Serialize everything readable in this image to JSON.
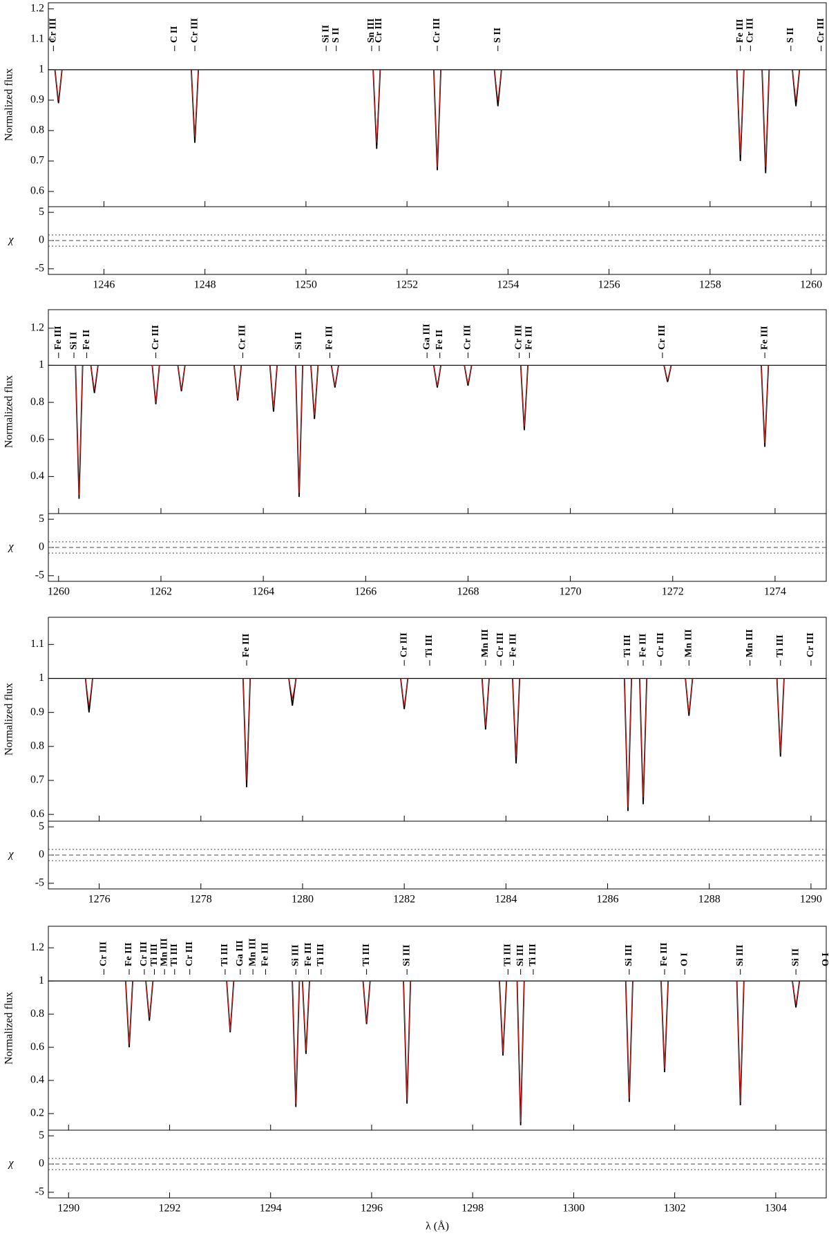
{
  "chart_data": [
    {
      "type": "line",
      "ylabel": "Normalized flux",
      "residual_label": "χ",
      "xlim": [
        1244.9,
        1260.3
      ],
      "xticks": [
        1246,
        1248,
        1250,
        1252,
        1254,
        1256,
        1258,
        1260
      ],
      "ylim": [
        0.55,
        1.22
      ],
      "yticks": [
        0.6,
        0.7,
        0.8,
        0.9,
        1,
        1.1,
        1.2
      ],
      "residual_ylim": [
        -6,
        6
      ],
      "residual_yticks": [
        -5,
        0,
        5
      ],
      "residual_refs": [
        -1,
        0,
        1
      ],
      "continuum": 1,
      "labels": [
        {
          "text": "Cr III",
          "x": 1245.0
        },
        {
          "text": "C II",
          "x": 1247.4
        },
        {
          "text": "Cr III",
          "x": 1247.8
        },
        {
          "text": "Si II",
          "x": 1250.4
        },
        {
          "text": "S II",
          "x": 1250.6
        },
        {
          "text": "Sn III",
          "x": 1251.3
        },
        {
          "text": "Cr III",
          "x": 1251.45
        },
        {
          "text": "Cr III",
          "x": 1252.6
        },
        {
          "text": "S II",
          "x": 1253.8
        },
        {
          "text": "Fe III",
          "x": 1258.6
        },
        {
          "text": "Cr III",
          "x": 1258.8
        },
        {
          "text": "S II",
          "x": 1259.6
        },
        {
          "text": "Cr III",
          "x": 1260.2
        }
      ],
      "series": [
        {
          "color": "#000000",
          "x": [
            1245.1,
            1247.8,
            1251.4,
            1252.6,
            1253.8,
            1258.6,
            1259.1,
            1259.7
          ],
          "values": [
            0.89,
            0.76,
            0.74,
            0.67,
            0.88,
            0.7,
            0.66,
            0.88
          ]
        },
        {
          "color": "#d62020",
          "x": [
            1245.1,
            1247.8,
            1251.4,
            1252.6,
            1253.8,
            1258.6,
            1259.1,
            1259.7
          ],
          "values": [
            0.9,
            0.78,
            0.76,
            0.68,
            0.9,
            0.72,
            0.68,
            0.9
          ]
        }
      ]
    },
    {
      "type": "line",
      "ylabel": "Normalized flux",
      "residual_label": "χ",
      "xlim": [
        1259.8,
        1275.0
      ],
      "xticks": [
        1260,
        1262,
        1264,
        1266,
        1268,
        1270,
        1272,
        1274
      ],
      "ylim": [
        0.2,
        1.3
      ],
      "yticks": [
        0.4,
        0.6,
        0.8,
        1,
        1.2
      ],
      "residual_ylim": [
        -6,
        6
      ],
      "residual_yticks": [
        -5,
        0,
        5
      ],
      "residual_refs": [
        -1,
        0,
        1
      ],
      "continuum": 1,
      "labels": [
        {
          "text": "Fe III",
          "x": 1260.0
        },
        {
          "text": "Si II",
          "x": 1260.3
        },
        {
          "text": "Fe II",
          "x": 1260.55
        },
        {
          "text": "Cr III",
          "x": 1261.9
        },
        {
          "text": "Cr III",
          "x": 1263.6
        },
        {
          "text": "Si II",
          "x": 1264.7
        },
        {
          "text": "Fe III",
          "x": 1265.3
        },
        {
          "text": "Ga III",
          "x": 1267.2
        },
        {
          "text": "Fe II",
          "x": 1267.45
        },
        {
          "text": "Cr III",
          "x": 1268.0
        },
        {
          "text": "Cr III",
          "x": 1269.0
        },
        {
          "text": "Fe III",
          "x": 1269.2
        },
        {
          "text": "Cr III",
          "x": 1271.8
        },
        {
          "text": "Fe III",
          "x": 1273.8
        }
      ],
      "series": [
        {
          "color": "#000000",
          "x": [
            1260.4,
            1260.7,
            1261.9,
            1262.4,
            1263.5,
            1264.2,
            1264.7,
            1265.0,
            1265.4,
            1267.4,
            1268.0,
            1269.1,
            1271.9,
            1273.8
          ],
          "values": [
            0.28,
            0.85,
            0.79,
            0.86,
            0.81,
            0.75,
            0.29,
            0.71,
            0.88,
            0.88,
            0.89,
            0.65,
            0.91,
            0.56
          ]
        },
        {
          "color": "#d62020",
          "x": [
            1260.4,
            1260.7,
            1261.9,
            1262.4,
            1263.5,
            1264.2,
            1264.7,
            1265.0,
            1265.4,
            1267.4,
            1268.0,
            1269.1,
            1271.9,
            1273.8
          ],
          "values": [
            0.3,
            0.87,
            0.8,
            0.87,
            0.82,
            0.77,
            0.31,
            0.73,
            0.89,
            0.89,
            0.9,
            0.67,
            0.92,
            0.58
          ]
        }
      ]
    },
    {
      "type": "line",
      "ylabel": "Normalized flux",
      "residual_label": "χ",
      "xlim": [
        1275.0,
        1290.3
      ],
      "xticks": [
        1276,
        1278,
        1280,
        1282,
        1284,
        1286,
        1288,
        1290
      ],
      "ylim": [
        0.58,
        1.18
      ],
      "yticks": [
        0.6,
        0.7,
        0.8,
        0.9,
        1,
        1.1
      ],
      "residual_ylim": [
        -6,
        6
      ],
      "residual_yticks": [
        -5,
        0,
        5
      ],
      "residual_refs": [
        -1,
        0,
        1
      ],
      "continuum": 1,
      "labels": [
        {
          "text": "Fe III",
          "x": 1278.9
        },
        {
          "text": "Cr III",
          "x": 1282.0
        },
        {
          "text": "Ti III",
          "x": 1282.5
        },
        {
          "text": "Mn III",
          "x": 1283.6
        },
        {
          "text": "Cr III",
          "x": 1283.9
        },
        {
          "text": "Fe III",
          "x": 1284.15
        },
        {
          "text": "Ti III",
          "x": 1286.4
        },
        {
          "text": "Fe III",
          "x": 1286.7
        },
        {
          "text": "Cr III",
          "x": 1287.05
        },
        {
          "text": "Mn III",
          "x": 1287.6
        },
        {
          "text": "Mn III",
          "x": 1288.8
        },
        {
          "text": "Ti III",
          "x": 1289.4
        },
        {
          "text": "Cr III",
          "x": 1290.0
        }
      ],
      "series": [
        {
          "color": "#000000",
          "x": [
            1275.8,
            1278.9,
            1279.8,
            1282.0,
            1283.6,
            1284.2,
            1286.4,
            1286.7,
            1287.6,
            1289.4
          ],
          "values": [
            0.9,
            0.68,
            0.92,
            0.91,
            0.85,
            0.75,
            0.61,
            0.63,
            0.89,
            0.77
          ]
        },
        {
          "color": "#d62020",
          "x": [
            1275.8,
            1278.9,
            1279.8,
            1282.0,
            1283.6,
            1284.2,
            1286.4,
            1286.7,
            1287.6,
            1289.4
          ],
          "values": [
            0.92,
            0.7,
            0.94,
            0.92,
            0.86,
            0.77,
            0.62,
            0.65,
            0.9,
            0.78
          ]
        }
      ]
    },
    {
      "type": "line",
      "ylabel": "Normalized flux",
      "residual_label": "χ",
      "xlabel": "λ (Å)",
      "xlim": [
        1289.6,
        1305.0
      ],
      "xticks": [
        1290,
        1292,
        1294,
        1296,
        1298,
        1300,
        1302,
        1304
      ],
      "ylim": [
        0.1,
        1.33
      ],
      "yticks": [
        0.2,
        0.4,
        0.6,
        0.8,
        1,
        1.2
      ],
      "residual_ylim": [
        -6,
        6
      ],
      "residual_yticks": [
        -5,
        0,
        5
      ],
      "residual_refs": [
        -1,
        0,
        1
      ],
      "continuum": 1,
      "labels": [
        {
          "text": "Cr III",
          "x": 1290.7
        },
        {
          "text": "Fe III",
          "x": 1291.2
        },
        {
          "text": "Cr III",
          "x": 1291.5
        },
        {
          "text": "Ti III",
          "x": 1291.7
        },
        {
          "text": "Mn III",
          "x": 1291.9
        },
        {
          "text": "Ti III",
          "x": 1292.1
        },
        {
          "text": "Cr III",
          "x": 1292.4
        },
        {
          "text": "Ti III",
          "x": 1293.1
        },
        {
          "text": "Ga III",
          "x": 1293.4
        },
        {
          "text": "Mn III",
          "x": 1293.65
        },
        {
          "text": "Fe III",
          "x": 1293.9
        },
        {
          "text": "Si III",
          "x": 1294.5
        },
        {
          "text": "Fe III",
          "x": 1294.75
        },
        {
          "text": "Ti III",
          "x": 1295.0
        },
        {
          "text": "Ti III",
          "x": 1295.9
        },
        {
          "text": "Si III",
          "x": 1296.7
        },
        {
          "text": "Ti III",
          "x": 1298.7
        },
        {
          "text": "Si III",
          "x": 1298.95
        },
        {
          "text": "Ti III",
          "x": 1299.2
        },
        {
          "text": "Si III",
          "x": 1301.1
        },
        {
          "text": "Fe III",
          "x": 1301.8
        },
        {
          "text": "O I",
          "x": 1302.2
        },
        {
          "text": "Si III",
          "x": 1303.3
        },
        {
          "text": "Si II",
          "x": 1304.4
        },
        {
          "text": "O I",
          "x": 1305.0
        }
      ],
      "series": [
        {
          "color": "#000000",
          "x": [
            1291.2,
            1291.6,
            1293.2,
            1294.5,
            1294.7,
            1295.9,
            1296.7,
            1298.6,
            1298.95,
            1301.1,
            1301.8,
            1303.3,
            1304.4
          ],
          "values": [
            0.6,
            0.76,
            0.69,
            0.24,
            0.56,
            0.74,
            0.26,
            0.55,
            0.13,
            0.27,
            0.45,
            0.25,
            0.84
          ]
        },
        {
          "color": "#d62020",
          "x": [
            1291.2,
            1291.6,
            1293.2,
            1294.5,
            1294.7,
            1295.9,
            1296.7,
            1298.6,
            1298.95,
            1301.1,
            1301.8,
            1303.3,
            1304.4
          ],
          "values": [
            0.62,
            0.78,
            0.7,
            0.26,
            0.58,
            0.75,
            0.28,
            0.57,
            0.15,
            0.29,
            0.47,
            0.27,
            0.86
          ]
        }
      ]
    }
  ]
}
